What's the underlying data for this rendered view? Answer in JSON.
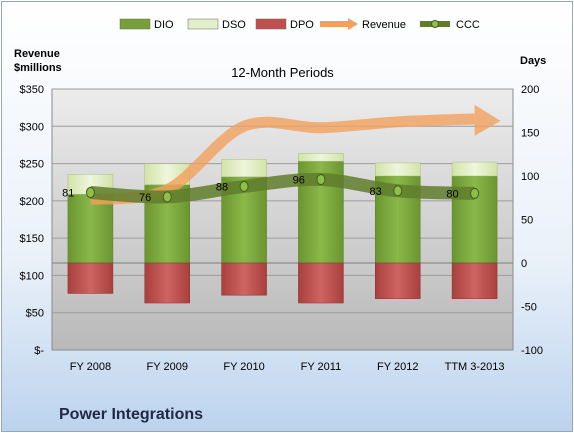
{
  "company": "Power Integrations",
  "chart_data": {
    "type": "bar",
    "title": "12-Month Periods",
    "left_axis_title": "Revenue\n$millions",
    "right_axis_title": "Days",
    "categories": [
      "FY 2008",
      "FY 2009",
      "FY 2010",
      "FY 2011",
      "FY 2012",
      "TTM 3-2013"
    ],
    "left_axis": {
      "range": [
        0,
        350
      ],
      "ticks": [
        0,
        50,
        100,
        150,
        200,
        250,
        300,
        350
      ],
      "tick_labels": [
        "$-",
        "$50",
        "$100",
        "$150",
        "$200",
        "$250",
        "$300",
        "$350"
      ]
    },
    "right_axis": {
      "range": [
        -100,
        200
      ],
      "ticks": [
        -100,
        -50,
        0,
        50,
        100,
        150,
        200
      ],
      "tick_labels": [
        "-100",
        "-50",
        "0",
        "50",
        100,
        150,
        200
      ]
    },
    "legend": [
      {
        "key": "DIO",
        "label": "DIO",
        "color": "#77a03a"
      },
      {
        "key": "DSO",
        "label": "DSO",
        "color": "#e3efc8"
      },
      {
        "key": "DPO",
        "label": "DPO",
        "color": "#c0504d"
      },
      {
        "key": "Revenue",
        "label": "Revenue",
        "color": "#f3a05c"
      },
      {
        "key": "CCC",
        "label": "CCC",
        "color": "#5f7d2b"
      }
    ],
    "series": [
      {
        "name": "DIO",
        "axis": "right",
        "values": [
          79,
          90,
          99,
          117,
          100,
          100
        ]
      },
      {
        "name": "DSO",
        "axis": "right",
        "values": [
          23,
          24,
          20,
          9,
          15,
          16
        ]
      },
      {
        "name": "DPO",
        "axis": "right",
        "values": [
          -35,
          -46,
          -37,
          -46,
          -41,
          -41
        ]
      },
      {
        "name": "Revenue",
        "axis": "left",
        "values": [
          202,
          215,
          300,
          298,
          306,
          310
        ]
      },
      {
        "name": "CCC",
        "axis": "right",
        "values": [
          81,
          76,
          88,
          96,
          83,
          80
        ]
      }
    ],
    "data_labels": [
      "81",
      "76",
      "88",
      "96",
      "83",
      "80"
    ],
    "grid": true,
    "legend_position": "top"
  }
}
